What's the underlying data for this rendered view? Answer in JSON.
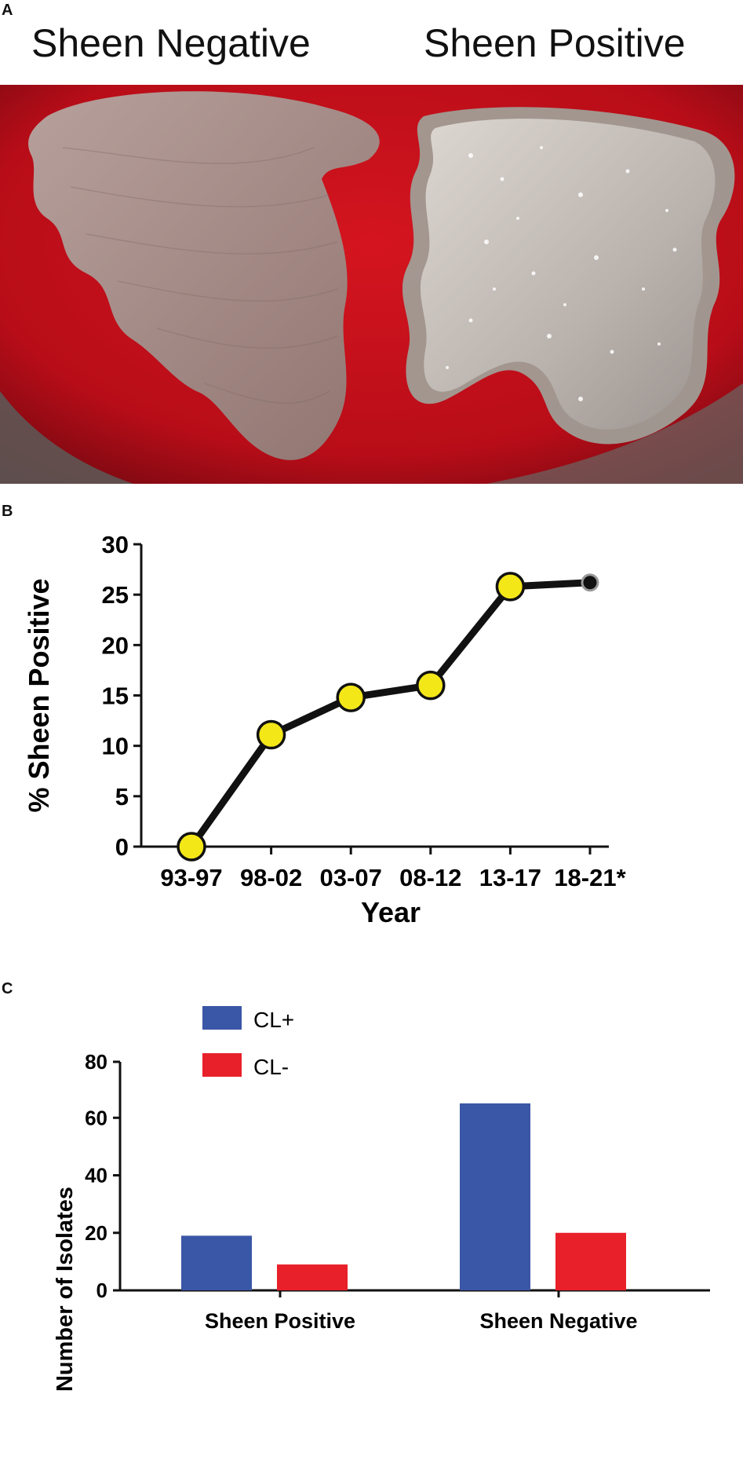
{
  "panels": {
    "a": {
      "letter": "A",
      "left_label": "Sheen Negative",
      "right_label": "Sheen Positive"
    },
    "b": {
      "letter": "B"
    },
    "c": {
      "letter": "C"
    }
  },
  "colors": {
    "plate_red": "#c8101c",
    "colony_gray": "#9e8c86",
    "point_fill": "#f4e718",
    "cl_plus": "#3a56a6",
    "cl_minus": "#e8202a"
  },
  "chart_data": [
    {
      "type": "line",
      "ylabel": "% Sheen Positive",
      "xlabel": "Year",
      "categories": [
        "93-97",
        "98-02",
        "03-07",
        "08-12",
        "13-17",
        "18-21*"
      ],
      "values": [
        0,
        11.1,
        14.8,
        16.0,
        25.8,
        26.2
      ],
      "ylim": [
        0,
        30
      ],
      "yticks": [
        0,
        5,
        10,
        15,
        20,
        25,
        30
      ],
      "last_point_style": "small-dark"
    },
    {
      "type": "bar",
      "ylabel": "Number of Isolates",
      "xlabel": "",
      "categories": [
        "Sheen Positive",
        "Sheen Negative"
      ],
      "series": [
        {
          "name": "CL+",
          "values": [
            19,
            65
          ]
        },
        {
          "name": "CL-",
          "values": [
            9,
            20
          ]
        }
      ],
      "ylim": [
        0,
        80
      ],
      "yticks": [
        0,
        20,
        40,
        60,
        80
      ],
      "legend": "top-left"
    }
  ]
}
